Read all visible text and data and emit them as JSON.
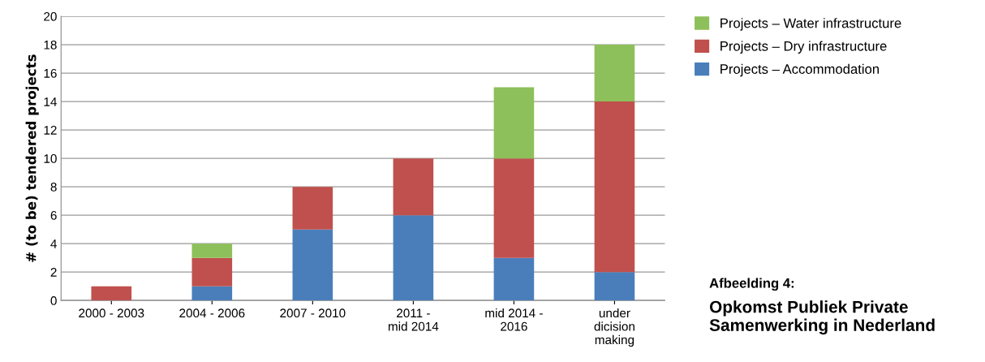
{
  "chart_data": {
    "type": "bar",
    "stacked": true,
    "title": "Afbeelding 4:",
    "subtitle": "Opkomst Publiek Private Samenwerking in Nederland",
    "ylabel": "# (to be) tendered projects",
    "categories": [
      "2000 - 2003",
      "2004 - 2006",
      "2007 - 2010",
      "2011 -\nmid 2014",
      "mid 2014 -\n2016",
      "under\ndicision\nmaking"
    ],
    "series": [
      {
        "name": "Projects – Accommodation",
        "color": "#4a7ebb",
        "values": [
          0,
          1,
          5,
          6,
          3,
          2
        ]
      },
      {
        "name": "Projects – Dry infrastructure",
        "color": "#c0504d",
        "values": [
          1,
          2,
          3,
          4,
          7,
          12
        ]
      },
      {
        "name": "Projects – Water infrastructure",
        "color": "#8dc05a",
        "values": [
          0,
          1,
          0,
          0,
          5,
          4
        ]
      }
    ],
    "ylim": [
      0,
      20
    ],
    "yticks": [
      0,
      2,
      4,
      6,
      8,
      10,
      12,
      14,
      16,
      18,
      20
    ],
    "grid": "y",
    "legend": "top right"
  }
}
